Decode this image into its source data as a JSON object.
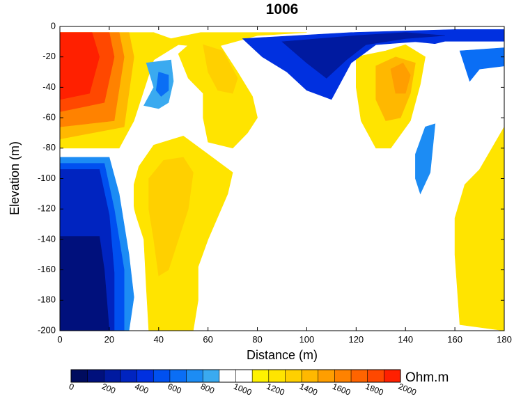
{
  "chart_data": {
    "type": "heatmap",
    "subtype": "filled-contour resistivity section",
    "title": "1006",
    "xlabel": "Distance (m)",
    "ylabel": "Elevation (m)",
    "xlim": [
      0,
      180
    ],
    "ylim": [
      -200,
      0
    ],
    "x_ticks": [
      "0",
      "20",
      "40",
      "60",
      "80",
      "100",
      "120",
      "140",
      "160",
      "180"
    ],
    "y_ticks": [
      "0",
      "-20",
      "-40",
      "-60",
      "-80",
      "-100",
      "-120",
      "-140",
      "-160",
      "-180",
      "-200"
    ],
    "colorbar": {
      "unit": "Ohm.m",
      "range": [
        0,
        2000
      ],
      "ticks": [
        "0",
        "200",
        "400",
        "600",
        "800",
        "1000",
        "1200",
        "1400",
        "1600",
        "1800",
        "2000"
      ],
      "levels": [
        0,
        100,
        200,
        300,
        400,
        500,
        600,
        700,
        800,
        900,
        1000,
        1100,
        1200,
        1300,
        1400,
        1500,
        1600,
        1700,
        1800,
        1900,
        2000
      ],
      "colors": [
        "#000c5e",
        "#00107c",
        "#001aa0",
        "#0024c0",
        "#0030e0",
        "#0050f0",
        "#0a6ef5",
        "#1c8cf4",
        "#3aaaf0",
        "#ffffff",
        "#ffffff",
        "#fff200",
        "#ffe400",
        "#ffd000",
        "#ffb800",
        "#ff9e00",
        "#ff8200",
        "#ff6400",
        "#ff4800",
        "#ff2000"
      ]
    },
    "data_window_top_elevation": -4,
    "zones": [
      {
        "value": 1000,
        "shape": [
          [
            0,
            -4
          ],
          [
            180,
            -4
          ],
          [
            180,
            -200
          ],
          [
            0,
            -200
          ]
        ]
      },
      {
        "value": 1250,
        "shape": [
          [
            0,
            -4
          ],
          [
            38,
            -4
          ],
          [
            45,
            -8
          ],
          [
            57,
            -4
          ],
          [
            100,
            -4
          ],
          [
            80,
            -6
          ],
          [
            62,
            -14
          ],
          [
            48,
            -12
          ],
          [
            38,
            -22
          ],
          [
            30,
            -62
          ],
          [
            24,
            -80
          ],
          [
            0,
            -80
          ]
        ]
      },
      {
        "value": 1450,
        "shape": [
          [
            0,
            -4
          ],
          [
            28,
            -4
          ],
          [
            30,
            -20
          ],
          [
            26,
            -66
          ],
          [
            0,
            -74
          ]
        ]
      },
      {
        "value": 1650,
        "shape": [
          [
            0,
            -4
          ],
          [
            24,
            -4
          ],
          [
            26,
            -20
          ],
          [
            22,
            -62
          ],
          [
            0,
            -66
          ]
        ]
      },
      {
        "value": 1850,
        "shape": [
          [
            0,
            -4
          ],
          [
            20,
            -4
          ],
          [
            22,
            -20
          ],
          [
            18,
            -50
          ],
          [
            0,
            -56
          ]
        ]
      },
      {
        "value": 1950,
        "shape": [
          [
            0,
            -4
          ],
          [
            13,
            -4
          ],
          [
            16,
            -20
          ],
          [
            12,
            -44
          ],
          [
            0,
            -48
          ]
        ]
      },
      {
        "value": 1200,
        "shape": [
          [
            55,
            -8
          ],
          [
            64,
            -10
          ],
          [
            72,
            -30
          ],
          [
            78,
            -46
          ],
          [
            80,
            -60
          ],
          [
            76,
            -70
          ],
          [
            70,
            -80
          ],
          [
            60,
            -76
          ],
          [
            58,
            -60
          ],
          [
            58,
            -44
          ],
          [
            52,
            -34
          ],
          [
            48,
            -18
          ]
        ]
      },
      {
        "value": 1300,
        "shape": [
          [
            58,
            -12
          ],
          [
            66,
            -16
          ],
          [
            72,
            -34
          ],
          [
            70,
            -44
          ],
          [
            64,
            -42
          ],
          [
            60,
            -30
          ]
        ]
      },
      {
        "value": 1200,
        "shape": [
          [
            120,
            -20
          ],
          [
            132,
            -16
          ],
          [
            140,
            -12
          ],
          [
            148,
            -20
          ],
          [
            146,
            -38
          ],
          [
            142,
            -62
          ],
          [
            134,
            -80
          ],
          [
            128,
            -80
          ],
          [
            122,
            -62
          ],
          [
            120,
            -40
          ]
        ]
      },
      {
        "value": 1400,
        "shape": [
          [
            128,
            -26
          ],
          [
            136,
            -20
          ],
          [
            144,
            -24
          ],
          [
            142,
            -44
          ],
          [
            138,
            -60
          ],
          [
            132,
            -62
          ],
          [
            128,
            -48
          ]
        ]
      },
      {
        "value": 1500,
        "shape": [
          [
            134,
            -28
          ],
          [
            139,
            -24
          ],
          [
            142,
            -32
          ],
          [
            140,
            -44
          ],
          [
            136,
            -44
          ]
        ]
      },
      {
        "value": 400,
        "shape": [
          [
            74,
            -8
          ],
          [
            118,
            -4
          ],
          [
            160,
            -2
          ],
          [
            180,
            -2
          ],
          [
            180,
            -14
          ],
          [
            166,
            -16
          ],
          [
            156,
            -12
          ],
          [
            144,
            -10
          ],
          [
            128,
            -12
          ],
          [
            118,
            -24
          ],
          [
            110,
            -48
          ],
          [
            100,
            -42
          ],
          [
            92,
            -30
          ],
          [
            82,
            -20
          ]
        ]
      },
      {
        "value": 200,
        "shape": [
          [
            90,
            -10
          ],
          [
            120,
            -6
          ],
          [
            140,
            -4
          ],
          [
            156,
            -6
          ],
          [
            140,
            -8
          ],
          [
            124,
            -12
          ],
          [
            116,
            -22
          ],
          [
            108,
            -34
          ],
          [
            100,
            -24
          ]
        ]
      },
      {
        "value": 900,
        "shape": [
          [
            146,
            -14
          ],
          [
            156,
            -10
          ],
          [
            180,
            -10
          ],
          [
            180,
            -30
          ],
          [
            170,
            -34
          ],
          [
            164,
            -48
          ],
          [
            160,
            -44
          ],
          [
            152,
            -30
          ]
        ]
      },
      {
        "value": 600,
        "shape": [
          [
            162,
            -16
          ],
          [
            180,
            -14
          ],
          [
            180,
            -26
          ],
          [
            170,
            -28
          ],
          [
            166,
            -36
          ]
        ]
      },
      {
        "value": 800,
        "shape": [
          [
            34,
            -52
          ],
          [
            38,
            -40
          ],
          [
            35,
            -24
          ],
          [
            45,
            -22
          ],
          [
            46,
            -36
          ],
          [
            44,
            -50
          ],
          [
            40,
            -54
          ]
        ]
      },
      {
        "value": 600,
        "shape": [
          [
            39,
            -42
          ],
          [
            40,
            -30
          ],
          [
            44,
            -32
          ],
          [
            44,
            -42
          ],
          [
            41,
            -46
          ]
        ]
      },
      {
        "value": 1200,
        "shape": [
          [
            32,
            -92
          ],
          [
            38,
            -78
          ],
          [
            50,
            -72
          ],
          [
            60,
            -84
          ],
          [
            70,
            -96
          ],
          [
            68,
            -110
          ],
          [
            60,
            -140
          ],
          [
            56,
            -158
          ],
          [
            56,
            -180
          ],
          [
            54,
            -200
          ],
          [
            36,
            -200
          ],
          [
            35,
            -172
          ],
          [
            34,
            -140
          ],
          [
            30,
            -120
          ],
          [
            30,
            -104
          ]
        ]
      },
      {
        "value": 1300,
        "shape": [
          [
            36,
            -100
          ],
          [
            42,
            -88
          ],
          [
            50,
            -86
          ],
          [
            54,
            -96
          ],
          [
            52,
            -120
          ],
          [
            48,
            -140
          ],
          [
            44,
            -160
          ],
          [
            40,
            -164
          ],
          [
            38,
            -140
          ],
          [
            36,
            -120
          ]
        ]
      },
      {
        "value": 900,
        "shape": [
          [
            0,
            -82
          ],
          [
            24,
            -82
          ],
          [
            28,
            -96
          ],
          [
            30,
            -120
          ],
          [
            34,
            -146
          ],
          [
            34,
            -172
          ],
          [
            30,
            -200
          ],
          [
            0,
            -200
          ]
        ]
      },
      {
        "value": 700,
        "shape": [
          [
            0,
            -86
          ],
          [
            20,
            -86
          ],
          [
            24,
            -110
          ],
          [
            28,
            -150
          ],
          [
            30,
            -178
          ],
          [
            28,
            -200
          ],
          [
            0,
            -200
          ]
        ]
      },
      {
        "value": 500,
        "shape": [
          [
            0,
            -90
          ],
          [
            18,
            -90
          ],
          [
            22,
            -120
          ],
          [
            26,
            -160
          ],
          [
            26,
            -200
          ],
          [
            0,
            -200
          ]
        ]
      },
      {
        "value": 300,
        "shape": [
          [
            0,
            -94
          ],
          [
            16,
            -94
          ],
          [
            20,
            -124
          ],
          [
            22,
            -162
          ],
          [
            22,
            -200
          ],
          [
            0,
            -200
          ]
        ]
      },
      {
        "value": 100,
        "shape": [
          [
            0,
            -138
          ],
          [
            16,
            -138
          ],
          [
            18,
            -160
          ],
          [
            20,
            -200
          ],
          [
            0,
            -200
          ]
        ]
      },
      {
        "value": 900,
        "shape": [
          [
            138,
            -76
          ],
          [
            144,
            -58
          ],
          [
            150,
            -52
          ],
          [
            154,
            -60
          ],
          [
            152,
            -88
          ],
          [
            150,
            -104
          ],
          [
            146,
            -128
          ],
          [
            142,
            -142
          ],
          [
            136,
            -140
          ],
          [
            136,
            -120
          ],
          [
            136,
            -100
          ]
        ]
      },
      {
        "value": 700,
        "shape": [
          [
            144,
            -84
          ],
          [
            148,
            -66
          ],
          [
            152,
            -64
          ],
          [
            150,
            -96
          ],
          [
            146,
            -110
          ],
          [
            144,
            -100
          ]
        ]
      },
      {
        "value": 1200,
        "shape": [
          [
            180,
            -66
          ],
          [
            180,
            -200
          ],
          [
            162,
            -196
          ],
          [
            160,
            -150
          ],
          [
            160,
            -126
          ],
          [
            164,
            -104
          ],
          [
            170,
            -94
          ]
        ]
      },
      {
        "value": 900,
        "shape": [
          [
            70,
            -200
          ],
          [
            74,
            -160
          ],
          [
            78,
            -146
          ],
          [
            86,
            -142
          ],
          [
            94,
            -132
          ],
          [
            100,
            -122
          ],
          [
            104,
            -138
          ],
          [
            103,
            -170
          ],
          [
            103,
            -200
          ]
        ]
      }
    ]
  }
}
